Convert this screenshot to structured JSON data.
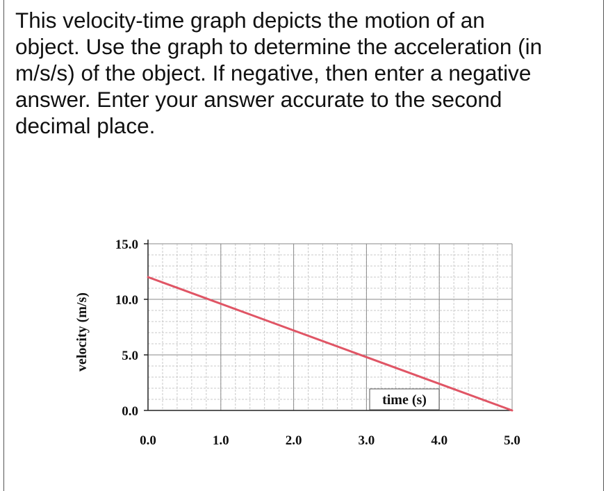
{
  "question": {
    "text": "This velocity-time graph depicts the motion of an\nobject. Use the graph to determine the acceleration (in\nm/s/s) of the object. If negative, then enter a negative\nanswer. Enter your answer accurate to the second\ndecimal place."
  },
  "chart_data": {
    "type": "line",
    "title": "",
    "xlabel": "time (s)",
    "ylabel": "velocity (m/s)",
    "xlim": [
      0,
      5
    ],
    "ylim": [
      0,
      15
    ],
    "x_ticks": [
      "0.0",
      "1.0",
      "2.0",
      "3.0",
      "4.0",
      "5.0"
    ],
    "y_ticks": [
      "0.0",
      "5.0",
      "10.0",
      "15.0"
    ],
    "grid": true,
    "series": [
      {
        "x": [
          0,
          5
        ],
        "values": [
          12,
          0
        ],
        "color": "#e05565"
      }
    ]
  }
}
